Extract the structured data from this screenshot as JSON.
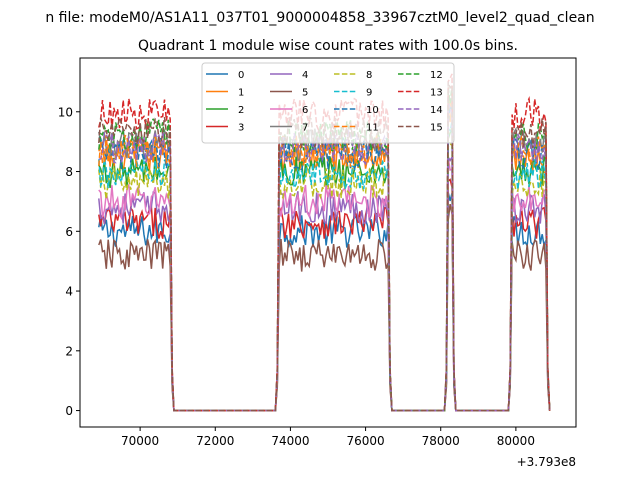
{
  "chart_data": {
    "type": "line",
    "suptitle": "n file: modeM0/AS1A11_037T01_9000004858_33967cztM0_level2_quad_clean",
    "title": "Quadrant 1 module wise count rates with 100.0s bins.",
    "xlabel": "",
    "ylabel": "",
    "x_offset_label": "+3.793e8",
    "xlim": [
      68400,
      81600
    ],
    "ylim": [
      -0.55,
      11.8
    ],
    "xticks": [
      {
        "value": 70000,
        "label": "70000"
      },
      {
        "value": 72000,
        "label": "72000"
      },
      {
        "value": 74000,
        "label": "74000"
      },
      {
        "value": 76000,
        "label": "76000"
      },
      {
        "value": 78000,
        "label": "78000"
      },
      {
        "value": 80000,
        "label": "80000"
      }
    ],
    "yticks": [
      {
        "value": 0,
        "label": "0"
      },
      {
        "value": 2,
        "label": "2"
      },
      {
        "value": 4,
        "label": "4"
      },
      {
        "value": 6,
        "label": "6"
      },
      {
        "value": 8,
        "label": "8"
      },
      {
        "value": 10,
        "label": "10"
      }
    ],
    "legend_placement": "upper-center",
    "legend_columns": 4,
    "bin_width_s": 100,
    "x_start": 68900,
    "x_end": 80900,
    "active_segments": [
      [
        68900,
        70800
      ],
      [
        73700,
        76600
      ],
      [
        78200,
        78300
      ],
      [
        79900,
        80800
      ]
    ],
    "series": [
      {
        "name": "0",
        "color": "#1f77b4",
        "dash": "solid",
        "base": 6.0
      },
      {
        "name": "1",
        "color": "#ff7f0e",
        "dash": "solid",
        "base": 8.5
      },
      {
        "name": "2",
        "color": "#2ca02c",
        "dash": "solid",
        "base": 8.0
      },
      {
        "name": "3",
        "color": "#d62728",
        "dash": "solid",
        "base": 6.3
      },
      {
        "name": "4",
        "color": "#9467bd",
        "dash": "solid",
        "base": 6.8
      },
      {
        "name": "5",
        "color": "#8c564b",
        "dash": "solid",
        "base": 5.2
      },
      {
        "name": "6",
        "color": "#e377c2",
        "dash": "solid",
        "base": 7.0
      },
      {
        "name": "7",
        "color": "#7f7f7f",
        "dash": "solid",
        "base": 8.9
      },
      {
        "name": "8",
        "color": "#bcbd22",
        "dash": "dashed",
        "base": 7.6
      },
      {
        "name": "9",
        "color": "#17becf",
        "dash": "dashed",
        "base": 7.9
      },
      {
        "name": "10",
        "color": "#1f77b4",
        "dash": "dashed",
        "base": 8.6
      },
      {
        "name": "11",
        "color": "#ff7f0e",
        "dash": "dashed",
        "base": 8.7
      },
      {
        "name": "12",
        "color": "#2ca02c",
        "dash": "dashed",
        "base": 9.2
      },
      {
        "name": "13",
        "color": "#d62728",
        "dash": "dashed",
        "base": 9.9
      },
      {
        "name": "14",
        "color": "#9467bd",
        "dash": "dashed",
        "base": 8.8
      },
      {
        "name": "15",
        "color": "#8c564b",
        "dash": "dashed",
        "base": 9.3
      }
    ]
  }
}
